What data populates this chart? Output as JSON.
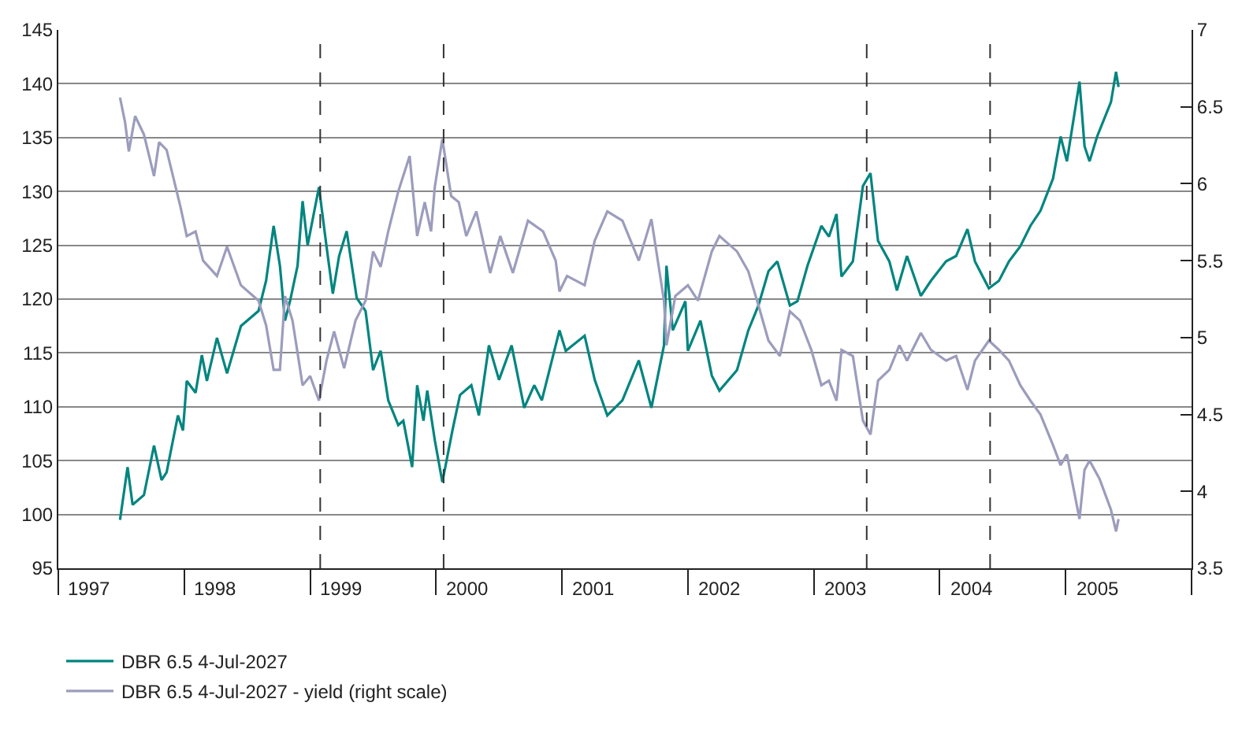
{
  "chart_data": {
    "type": "line",
    "xlim": [
      1997,
      2006
    ],
    "xticks": [
      {
        "value": 1997,
        "label": null
      },
      {
        "value": 1997.25,
        "label": "1997"
      },
      {
        "value": 1998,
        "label": null
      },
      {
        "value": 1998.25,
        "label": "1998"
      },
      {
        "value": 1999,
        "label": null
      },
      {
        "value": 1999.25,
        "label": "1999"
      },
      {
        "value": 2000,
        "label": null
      },
      {
        "value": 2000.25,
        "label": "2000"
      },
      {
        "value": 2001,
        "label": null
      },
      {
        "value": 2001.25,
        "label": "2001"
      },
      {
        "value": 2002,
        "label": null
      },
      {
        "value": 2002.25,
        "label": "2002"
      },
      {
        "value": 2003,
        "label": null
      },
      {
        "value": 2003.25,
        "label": "2003"
      },
      {
        "value": 2004,
        "label": null
      },
      {
        "value": 2004.25,
        "label": "2004"
      },
      {
        "value": 2005,
        "label": null
      },
      {
        "value": 2005.25,
        "label": "2005"
      },
      {
        "value": 2006,
        "label": null
      }
    ],
    "ylim": [
      95,
      145
    ],
    "yticks": [
      95,
      100,
      105,
      110,
      115,
      120,
      125,
      130,
      135,
      140,
      145
    ],
    "y2lim": [
      3.5,
      7
    ],
    "y2ticks": [
      3.5,
      4,
      4.5,
      5,
      5.5,
      6,
      6.5,
      7
    ],
    "grid": "y",
    "legend": "bottom left",
    "line_style": "solid",
    "marker": "none",
    "ref_lines": [
      {
        "axis": "x",
        "value": 1999.08,
        "line_style": "dashed",
        "color": "#333333"
      },
      {
        "axis": "x",
        "value": 2000.06,
        "line_style": "dashed",
        "color": "#333333"
      },
      {
        "axis": "x",
        "value": 2003.42,
        "line_style": "dashed",
        "color": "#333333"
      },
      {
        "axis": "x",
        "value": 2004.4,
        "line_style": "dashed",
        "color": "#333333"
      }
    ],
    "series": [
      {
        "name": "DBR 6.5 4-Jul-2027",
        "color": "#00857f",
        "x": [
          1997.49,
          1997.55,
          1997.59,
          1997.68,
          1997.76,
          1997.82,
          1997.86,
          1997.95,
          1997.99,
          1998.02,
          1998.09,
          1998.14,
          1998.18,
          1998.26,
          1998.34,
          1998.45,
          1998.59,
          1998.65,
          1998.71,
          1998.76,
          1998.8,
          1998.84,
          1998.9,
          1998.94,
          1998.98,
          1999.07,
          1999.13,
          1999.18,
          1999.23,
          1999.29,
          1999.37,
          1999.44,
          1999.5,
          1999.56,
          1999.62,
          1999.7,
          1999.74,
          1999.81,
          1999.85,
          1999.9,
          1999.93,
          1999.99,
          2000.05,
          2000.13,
          2000.19,
          2000.28,
          2000.34,
          2000.42,
          2000.5,
          2000.6,
          2000.7,
          2000.78,
          2000.84,
          2000.98,
          2001.03,
          2001.18,
          2001.26,
          2001.36,
          2001.48,
          2001.61,
          2001.71,
          2001.81,
          2001.83,
          2001.88,
          2001.98,
          2002.0,
          2002.1,
          2002.19,
          2002.25,
          2002.39,
          2002.48,
          2002.56,
          2002.64,
          2002.71,
          2002.81,
          2002.87,
          2002.95,
          2003.06,
          2003.12,
          2003.18,
          2003.22,
          2003.31,
          2003.39,
          2003.45,
          2003.51,
          2003.6,
          2003.66,
          2003.74,
          2003.85,
          2003.93,
          2004.05,
          2004.13,
          2004.22,
          2004.28,
          2004.39,
          2004.47,
          2004.55,
          2004.64,
          2004.72,
          2004.8,
          2004.9,
          2004.96,
          2005.01,
          2005.11,
          2005.15,
          2005.19,
          2005.25,
          2005.36,
          2005.4,
          2005.42
        ],
        "values": [
          99.5,
          104.4,
          100.9,
          101.8,
          106.4,
          103.2,
          103.9,
          109.2,
          107.8,
          112.4,
          111.3,
          114.8,
          112.4,
          116.4,
          113.1,
          117.5,
          118.9,
          121.7,
          126.8,
          123.1,
          118.0,
          119.8,
          123.1,
          129.1,
          125.0,
          130.4,
          124.9,
          120.5,
          124.0,
          126.3,
          120.1,
          118.9,
          113.4,
          115.2,
          110.6,
          108.3,
          108.7,
          104.4,
          112.0,
          108.7,
          111.5,
          106.9,
          103.0,
          107.8,
          111.1,
          112.0,
          109.2,
          115.7,
          112.5,
          115.7,
          109.9,
          112.0,
          110.6,
          117.1,
          115.2,
          116.6,
          112.5,
          109.2,
          110.6,
          114.3,
          109.9,
          115.7,
          123.1,
          117.1,
          119.8,
          115.2,
          118.0,
          112.9,
          111.5,
          113.4,
          117.1,
          119.4,
          122.6,
          123.5,
          119.4,
          119.8,
          123.1,
          126.8,
          125.8,
          127.9,
          122.1,
          123.5,
          130.5,
          131.7,
          125.4,
          123.5,
          120.8,
          124.0,
          120.3,
          121.7,
          123.5,
          124.0,
          126.5,
          123.5,
          121.0,
          121.7,
          123.5,
          124.9,
          126.8,
          128.2,
          131.2,
          135.1,
          132.8,
          140.2,
          134.2,
          132.8,
          135.1,
          138.3,
          141.1,
          139.7
        ]
      },
      {
        "name": "DBR 6.5 4-Jul-2027 - yield (right scale)",
        "color": "#9c9cbd",
        "axis": "y2",
        "x": [
          1997.49,
          1997.53,
          1997.56,
          1997.61,
          1997.68,
          1997.76,
          1997.8,
          1997.86,
          1997.97,
          1998.02,
          1998.09,
          1998.15,
          1998.26,
          1998.34,
          1998.45,
          1998.59,
          1998.65,
          1998.71,
          1998.76,
          1998.8,
          1998.86,
          1998.94,
          1999.0,
          1999.07,
          1999.13,
          1999.19,
          1999.27,
          1999.36,
          1999.44,
          1999.5,
          1999.56,
          1999.62,
          1999.7,
          1999.79,
          1999.85,
          1999.91,
          1999.96,
          1999.99,
          2000.05,
          2000.12,
          2000.18,
          2000.24,
          2000.32,
          2000.43,
          2000.51,
          2000.61,
          2000.73,
          2000.85,
          2000.95,
          2000.98,
          2001.04,
          2001.18,
          2001.26,
          2001.36,
          2001.48,
          2001.61,
          2001.71,
          2001.81,
          2001.83,
          2001.9,
          2002.0,
          2002.08,
          2002.19,
          2002.25,
          2002.39,
          2002.48,
          2002.56,
          2002.64,
          2002.73,
          2002.81,
          2002.89,
          2002.98,
          2003.06,
          2003.12,
          2003.18,
          2003.22,
          2003.31,
          2003.39,
          2003.45,
          2003.51,
          2003.6,
          2003.68,
          2003.74,
          2003.85,
          2003.93,
          2004.05,
          2004.13,
          2004.22,
          2004.28,
          2004.39,
          2004.47,
          2004.55,
          2004.64,
          2004.72,
          2004.8,
          2004.9,
          2004.96,
          2005.01,
          2005.11,
          2005.15,
          2005.19,
          2005.27,
          2005.36,
          2005.4,
          2005.42
        ],
        "values": [
          6.56,
          6.4,
          6.21,
          6.44,
          6.32,
          6.05,
          6.27,
          6.22,
          5.85,
          5.66,
          5.69,
          5.5,
          5.4,
          5.59,
          5.34,
          5.24,
          5.08,
          4.79,
          4.79,
          5.27,
          5.11,
          4.69,
          4.75,
          4.59,
          4.85,
          5.04,
          4.8,
          5.11,
          5.24,
          5.56,
          5.46,
          5.69,
          5.95,
          6.18,
          5.66,
          5.88,
          5.69,
          5.98,
          6.29,
          5.92,
          5.88,
          5.66,
          5.82,
          5.42,
          5.66,
          5.42,
          5.76,
          5.69,
          5.5,
          5.3,
          5.4,
          5.34,
          5.63,
          5.82,
          5.76,
          5.5,
          5.77,
          5.24,
          4.95,
          5.27,
          5.34,
          5.24,
          5.56,
          5.66,
          5.56,
          5.43,
          5.21,
          4.98,
          4.88,
          5.17,
          5.11,
          4.92,
          4.69,
          4.72,
          4.59,
          4.92,
          4.88,
          4.46,
          4.37,
          4.72,
          4.79,
          4.95,
          4.85,
          5.03,
          4.92,
          4.85,
          4.88,
          4.66,
          4.85,
          4.98,
          4.92,
          4.85,
          4.69,
          4.59,
          4.5,
          4.3,
          4.17,
          4.24,
          3.82,
          4.14,
          4.2,
          4.08,
          3.88,
          3.74,
          3.82
        ]
      }
    ]
  }
}
